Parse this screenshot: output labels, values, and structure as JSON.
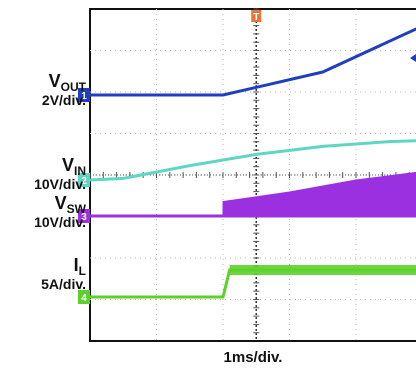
{
  "chart_data": {
    "type": "line",
    "title": "",
    "time_base": "1ms/div.",
    "colors": {
      "VOUT": "#1f3fbf",
      "VIN": "#5fd6c4",
      "VSW": "#9b30e0",
      "IL": "#5cd12a",
      "trigger": "#e8763a"
    },
    "markers": {
      "VOUT": "1",
      "VIN": "2",
      "VSW": "3",
      "IL": "4",
      "trigger": "T"
    },
    "series": [
      {
        "name": "VOUT",
        "symbol": "V",
        "subscript": "OUT",
        "scale": "2V/div.",
        "marker": "1",
        "x": [
          0,
          2.0,
          3.5,
          5.0,
          5.3,
          6
        ],
        "y": [
          1.0,
          1.0,
          4.0,
          6.0,
          6.0,
          6.0
        ]
      },
      {
        "name": "VIN",
        "symbol": "V",
        "subscript": "IN",
        "scale": "10V/div.",
        "marker": "2",
        "x": [
          0,
          0.5,
          1.5,
          2.5,
          3.5,
          4.5,
          6
        ],
        "y": [
          0.0,
          0.05,
          0.45,
          0.8,
          1.05,
          1.2,
          1.3
        ]
      },
      {
        "name": "VSW",
        "symbol": "V",
        "subscript": "SW",
        "scale": "10V/div.",
        "marker": "3",
        "x": [
          0,
          2.0,
          2.0,
          3.0,
          4.0,
          5.0,
          6
        ],
        "y": [
          0.0,
          0.0,
          0.6,
          1.0,
          1.5,
          1.85,
          2.0
        ]
      },
      {
        "name": "IL",
        "symbol": "I",
        "subscript": "L",
        "scale": "5A/div.",
        "marker": "4",
        "x": [
          0,
          2.0,
          2.1,
          6
        ],
        "y": [
          0.0,
          0.0,
          0.75,
          0.75
        ]
      }
    ]
  }
}
